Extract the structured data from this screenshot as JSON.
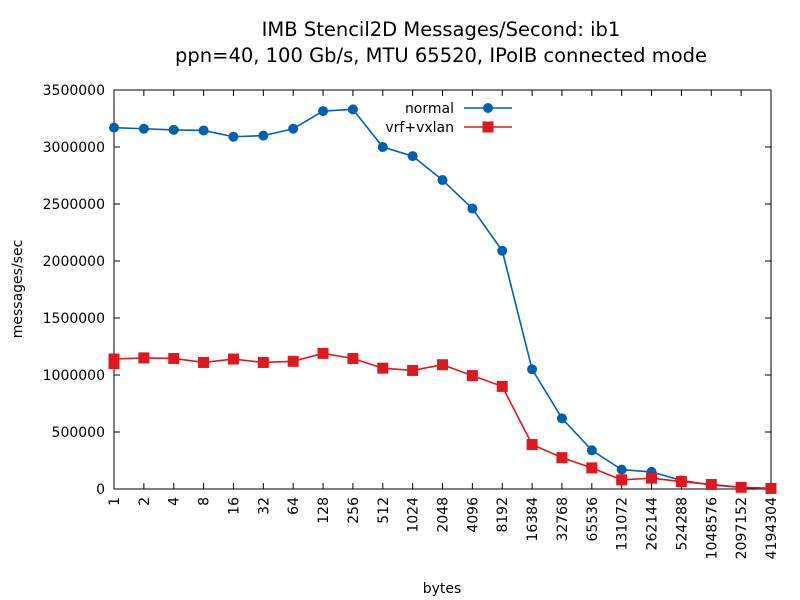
{
  "chart_data": {
    "type": "line",
    "title_lines": [
      "IMB Stencil2D Messages/Second: ib1",
      "ppn=40, 100 Gb/s, MTU 65520, IPoIB connected mode"
    ],
    "xlabel": "bytes",
    "ylabel": "messages/sec",
    "categories": [
      "1",
      "2",
      "4",
      "8",
      "16",
      "32",
      "64",
      "128",
      "256",
      "512",
      "1024",
      "2048",
      "4096",
      "8192",
      "16384",
      "32768",
      "65536",
      "131072",
      "262144",
      "524288",
      "1048576",
      "2097152",
      "4194304"
    ],
    "ylim": [
      0,
      3500000
    ],
    "yticks": [
      "0",
      "500000",
      "1000000",
      "1500000",
      "2000000",
      "2500000",
      "3000000",
      "3500000"
    ],
    "ytick_values": [
      0,
      500000,
      1000000,
      1500000,
      2000000,
      2500000,
      3000000,
      3500000
    ],
    "grid": false,
    "legend_position": "top-right",
    "series": [
      {
        "name": "normal",
        "color": "#0060ad",
        "marker": "circle",
        "values": [
          3170000,
          3160000,
          3150000,
          3145000,
          3090000,
          3100000,
          3160000,
          3315000,
          3330000,
          3000000,
          2920000,
          2710000,
          2460000,
          2090000,
          1050000,
          620000,
          340000,
          170000,
          150000,
          75000,
          35000,
          15000,
          5000
        ]
      },
      {
        "name": "vrf+vxlan",
        "color": "#dd181f",
        "marker": "square",
        "values": [
          1140000,
          1150000,
          1145000,
          1110000,
          1140000,
          1110000,
          1120000,
          1190000,
          1145000,
          1060000,
          1040000,
          1090000,
          995000,
          900000,
          390000,
          275000,
          185000,
          80000,
          95000,
          65000,
          40000,
          15000,
          5000
        ],
        "extra_points": [
          {
            "x": "1",
            "y": 1100000
          }
        ]
      }
    ]
  }
}
